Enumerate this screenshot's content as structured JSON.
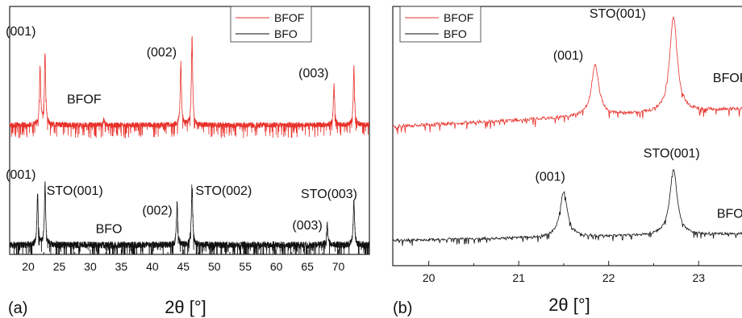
{
  "colors": {
    "BFOF": "#e8302a",
    "BFO": "#111111"
  },
  "chart_data": [
    {
      "type": "line",
      "panel_label": "(a)",
      "xlabel": "2θ [°]",
      "xlim": [
        17,
        75
      ],
      "xticks": [
        20,
        25,
        30,
        35,
        40,
        45,
        50,
        55,
        60,
        65,
        70
      ],
      "legend": {
        "placement": "top-right",
        "entries": [
          "BFOF",
          "BFO"
        ]
      },
      "series": [
        {
          "name": "BFOF",
          "peaks": [
            [
              21.9,
              0.55
            ],
            [
              22.7,
              0.7
            ],
            [
              32.2,
              0.05
            ],
            [
              44.6,
              0.6
            ],
            [
              46.4,
              0.85
            ],
            [
              69.3,
              0.4
            ],
            [
              72.5,
              0.55
            ]
          ]
        },
        {
          "name": "BFO",
          "peaks": [
            [
              21.5,
              0.45
            ],
            [
              22.7,
              0.55
            ],
            [
              44.0,
              0.4
            ],
            [
              46.4,
              0.6
            ],
            [
              68.2,
              0.2
            ],
            [
              72.5,
              0.4
            ]
          ]
        }
      ],
      "annotations": [
        {
          "text": "(001)",
          "x": 18.8,
          "series": "BFOF",
          "level": 0.8
        },
        {
          "text": "(002)",
          "x": 41.5,
          "series": "BFOF",
          "level": 0.6
        },
        {
          "text": "(003)",
          "x": 66.0,
          "series": "BFOF",
          "level": 0.4
        },
        {
          "text": "BFOF",
          "x": 29.0,
          "series": "BFOF",
          "level": 0.15
        },
        {
          "text": "(001)",
          "x": 18.8,
          "series": "BFO",
          "level": 0.55
        },
        {
          "text": "STO(001)",
          "x": 27.5,
          "series": "BFO",
          "level": 0.4
        },
        {
          "text": "(002)",
          "x": 40.8,
          "series": "BFO",
          "level": 0.22
        },
        {
          "text": "STO(002)",
          "x": 51.5,
          "series": "BFO",
          "level": 0.4
        },
        {
          "text": "STO(003)",
          "x": 68.5,
          "series": "BFO",
          "level": 0.37
        },
        {
          "text": "(003)",
          "x": 65.0,
          "series": "BFO",
          "level": 0.08
        },
        {
          "text": "BFO",
          "x": 33.0,
          "series": "BFO",
          "level": 0.05
        }
      ]
    },
    {
      "type": "line",
      "panel_label": "(b)",
      "xlabel": "2θ [°]",
      "xlim": [
        19.6,
        23.5
      ],
      "xticks": [
        20,
        21,
        22,
        23
      ],
      "legend": {
        "placement": "top-left",
        "entries": [
          "BFOF",
          "BFO"
        ]
      },
      "series": [
        {
          "name": "BFOF",
          "peaks": [
            [
              21.85,
              0.45
            ],
            [
              22.72,
              0.85
            ]
          ]
        },
        {
          "name": "BFO",
          "peaks": [
            [
              21.5,
              0.45
            ],
            [
              22.72,
              0.65
            ]
          ]
        }
      ],
      "annotations": [
        {
          "text": "STO(001)",
          "x": 22.1,
          "series": "BFOF",
          "level": 0.92
        },
        {
          "text": "(001)",
          "x": 21.55,
          "series": "BFOF",
          "level": 0.55
        },
        {
          "text": "BFOF",
          "x": 23.35,
          "series": "BFOF",
          "level": 0.35
        },
        {
          "text": "(001)",
          "x": 21.35,
          "series": "BFO",
          "level": 0.55
        },
        {
          "text": "STO(001)",
          "x": 22.7,
          "series": "BFO",
          "level": 0.78
        },
        {
          "text": "BFO",
          "x": 23.35,
          "series": "BFO",
          "level": 0.18
        }
      ]
    }
  ]
}
